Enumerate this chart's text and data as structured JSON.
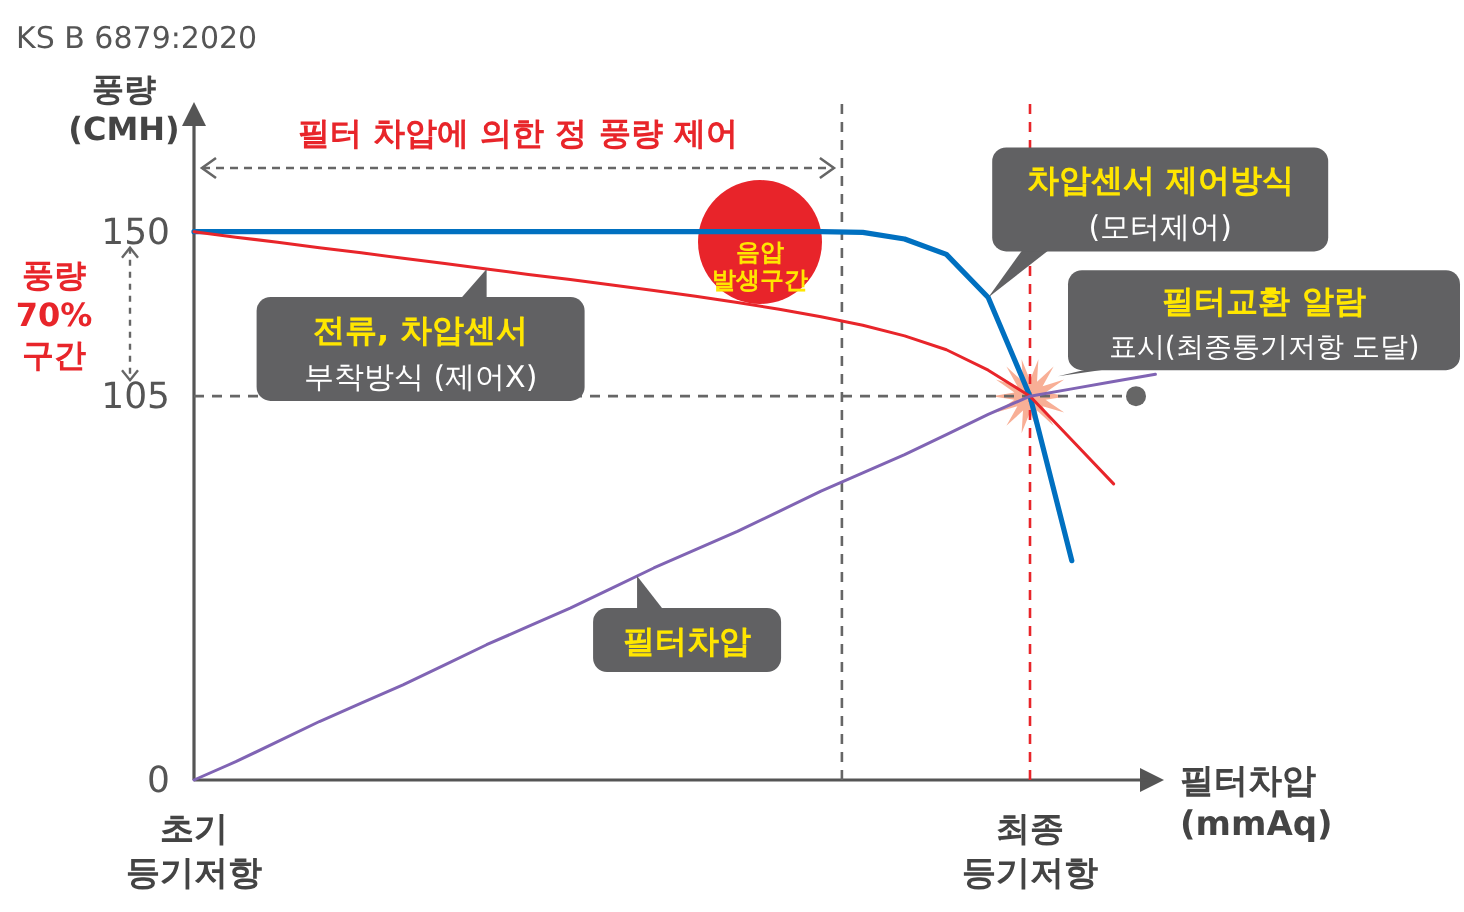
{
  "chart_data": {
    "type": "line",
    "ylabel": "풍량\n(CMH)",
    "xlabel": "필터차압\n(mmAq)",
    "categories": [
      "초기\n등기저항",
      null,
      null,
      null,
      null,
      null,
      null,
      null,
      null,
      null,
      null,
      null,
      null,
      null,
      null,
      null,
      null,
      null,
      null,
      null,
      "최종\n등기저항",
      null,
      null,
      null
    ],
    "ylim": [
      0,
      180
    ],
    "yticks": [
      0,
      105,
      150
    ],
    "series": [
      {
        "name": "차압센서 제어방식",
        "color": "#0070c0",
        "values": [
          150,
          150,
          150,
          150,
          150,
          150,
          150,
          150,
          150,
          150,
          150,
          150,
          150,
          150,
          150,
          150,
          149.8,
          148,
          143.8,
          132,
          105,
          60,
          null,
          null
        ]
      },
      {
        "name": "전류, 차압센서",
        "color": "#e8252a",
        "values": [
          150,
          148.5,
          147.1,
          145.6,
          144.2,
          142.7,
          141.3,
          139.8,
          138.3,
          136.9,
          135.4,
          133.9,
          132.3,
          130.6,
          128.8,
          126.7,
          124.4,
          121.5,
          117.7,
          112.1,
          105,
          93,
          81,
          null
        ]
      },
      {
        "name": "필터차압",
        "color": "#8064b4",
        "values": [
          0,
          5,
          10.5,
          16,
          21,
          26,
          31.5,
          37,
          42,
          47,
          52.5,
          58,
          63,
          68,
          73.5,
          79,
          84,
          89,
          94.5,
          100,
          105,
          107,
          109,
          111
        ]
      }
    ],
    "ref_lines": [
      {
        "axis": "y",
        "value": 105,
        "color": "#666666",
        "line_style": "dashed"
      }
    ],
    "annotations": [
      "KS B 6879:2020",
      "필터 차압에 의한 정 풍량 제어",
      "풍량\n70%\n구간",
      "(모터제어)",
      "부착방식 (제어X)",
      "음압\n발생구간",
      "필터교환 알람",
      "표시(최종통기저항 도달)"
    ]
  }
}
